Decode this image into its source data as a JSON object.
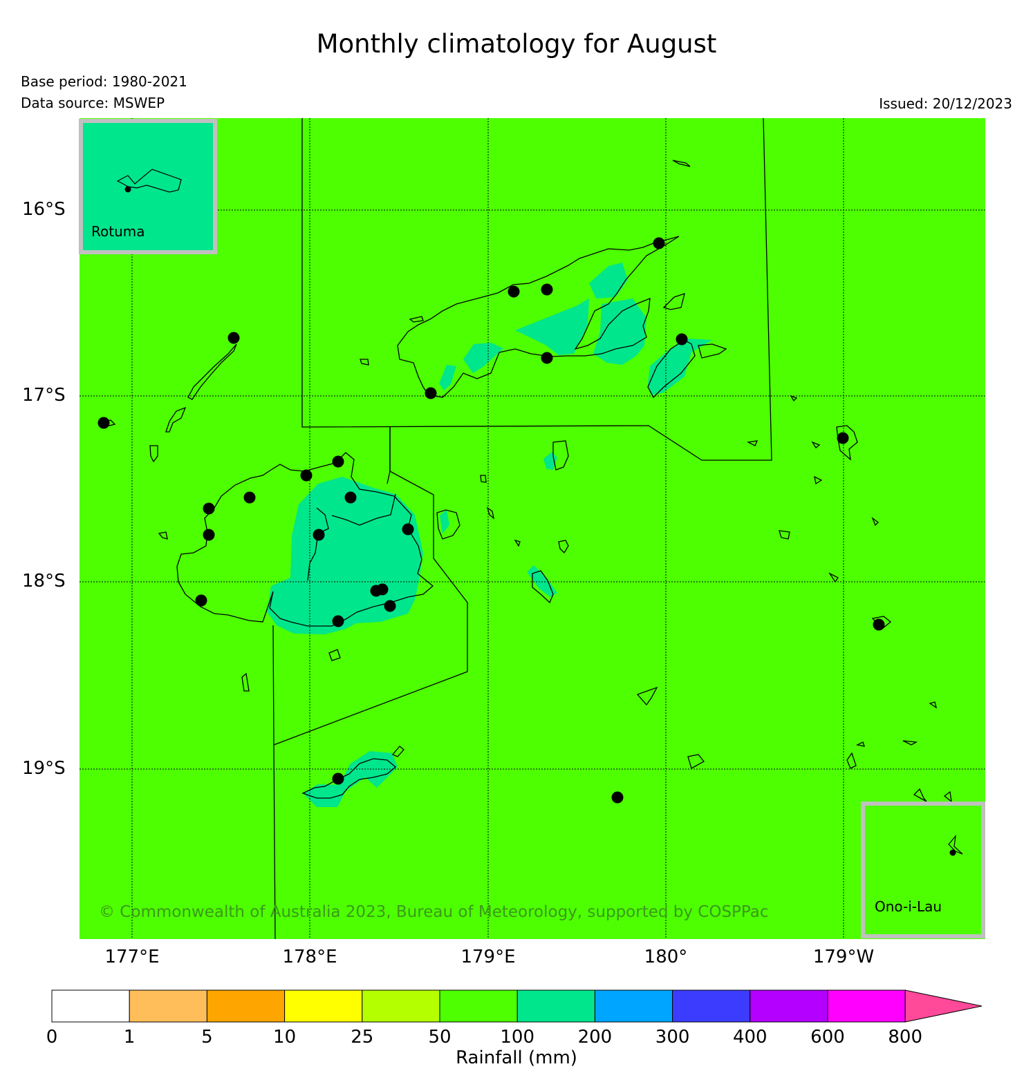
{
  "title": "Monthly climatology for August",
  "base_period": "Base period: 1980-2021",
  "data_source": "Data source: MSWEP",
  "issued": "Issued: 20/12/2023",
  "copyright": "© Commonwealth of Australia 2023, Bureau of Meteorology, supported by COSPPac",
  "axes": {
    "lat_labels": [
      "16°S",
      "17°S",
      "18°S",
      "19°S"
    ],
    "lon_labels": [
      "177°E",
      "178°E",
      "179°E",
      "180°",
      "179°W"
    ]
  },
  "insets": {
    "rotuma": {
      "label": "Rotuma",
      "class_color": "#00e68c"
    },
    "ono_i_lau": {
      "label": "Ono-i-Lau",
      "class_color": "#4dff00"
    }
  },
  "colors": {
    "background_class": "#4dff00",
    "wet_class": "#00e68c",
    "coastline": "#000000",
    "station": "#000000",
    "inset_border": "#c0c0c0",
    "copyright_text": "#3a9a1a"
  },
  "colorbar": {
    "label": "Rainfall (mm)",
    "ticks": [
      "0",
      "1",
      "5",
      "10",
      "25",
      "50",
      "100",
      "200",
      "300",
      "400",
      "600",
      "800"
    ],
    "colors": [
      "#ffffff",
      "#ffbe5a",
      "#ffa500",
      "#ffff00",
      "#b4ff00",
      "#4dff00",
      "#00e68c",
      "#00a5ff",
      "#3c3cff",
      "#b400ff",
      "#ff00ff"
    ],
    "extend_color": "#ff4a9a"
  }
}
